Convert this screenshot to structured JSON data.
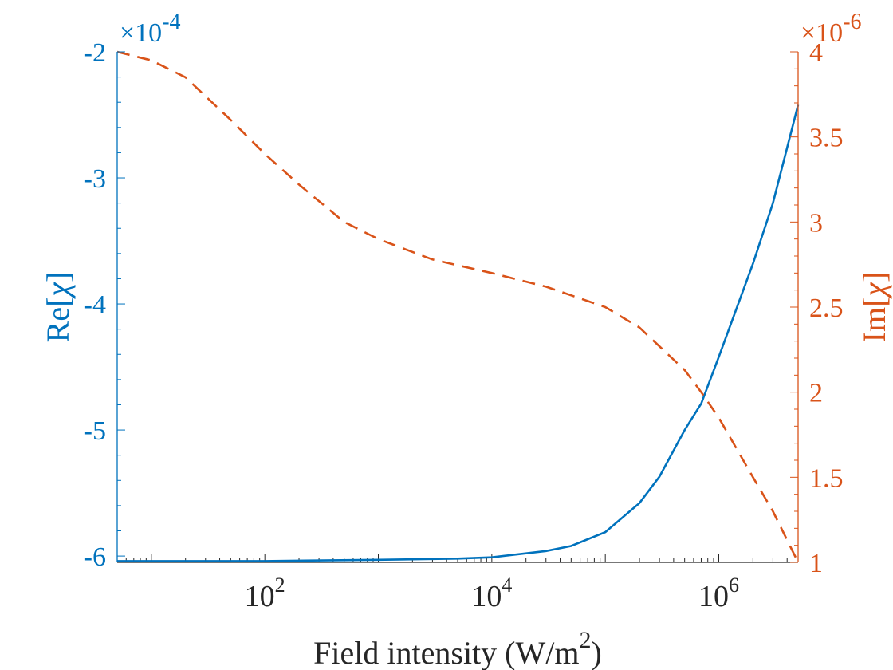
{
  "chart_data": {
    "type": "line",
    "title": "",
    "xlabel": "Field intensity (W/m²)",
    "xlabel_base": "Field intensity (W/m",
    "xlabel_sup": "2",
    "xlabel_tail": ")",
    "xscale": "log",
    "xlim": [
      5,
      5000000
    ],
    "x_ticks": [
      {
        "base": "10",
        "exp": "2",
        "value": 100
      },
      {
        "base": "10",
        "exp": "4",
        "value": 10000
      },
      {
        "base": "10",
        "exp": "6",
        "value": 1000000
      }
    ],
    "left_axis": {
      "label": "Re[χ]",
      "label_prefix": "Re[",
      "label_symbol": "χ",
      "label_suffix": "]",
      "color": "#0072BD",
      "ylim": [
        -6.05,
        -2.0
      ],
      "ticks": [
        "-2",
        "-3",
        "-4",
        "-5",
        "-6"
      ],
      "tick_values": [
        -2,
        -3,
        -4,
        -5,
        -6
      ],
      "multiplier": "×10",
      "multiplier_exp": "-4"
    },
    "right_axis": {
      "label": "Im[χ]",
      "label_prefix": "Im[",
      "label_symbol": "χ",
      "label_suffix": "]",
      "color": "#D95319",
      "ylim": [
        1.0,
        4.0
      ],
      "ticks": [
        "4",
        "3.5",
        "3",
        "2.5",
        "2",
        "1.5",
        "1"
      ],
      "tick_values": [
        4,
        3.5,
        3,
        2.5,
        2,
        1.5,
        1
      ],
      "multiplier": "×10",
      "multiplier_exp": "-6"
    },
    "series": [
      {
        "name": "Re[χ]",
        "axis": "left",
        "style": "solid",
        "color": "#0072BD",
        "x": [
          5,
          10,
          100,
          1000,
          5000,
          10000,
          30000,
          50000,
          100000,
          200000,
          300000,
          500000,
          700000,
          1000000,
          2000000,
          3000000,
          5000000
        ],
        "y": [
          -6.04,
          -6.04,
          -6.04,
          -6.03,
          -6.02,
          -6.01,
          -5.96,
          -5.92,
          -5.81,
          -5.58,
          -5.37,
          -5.0,
          -4.79,
          -4.42,
          -3.68,
          -3.2,
          -2.42
        ]
      },
      {
        "name": "Im[χ]",
        "axis": "right",
        "style": "dashed",
        "color": "#D95319",
        "x": [
          5,
          10,
          20,
          50,
          100,
          200,
          500,
          1000,
          3000,
          10000,
          30000,
          100000,
          200000,
          500000,
          700000,
          1000000,
          2000000,
          3000000,
          5000000
        ],
        "y": [
          4.0,
          3.95,
          3.85,
          3.6,
          3.4,
          3.22,
          3.0,
          2.9,
          2.78,
          2.7,
          2.62,
          2.5,
          2.38,
          2.13,
          2.0,
          1.85,
          1.5,
          1.3,
          1.0
        ]
      }
    ]
  }
}
